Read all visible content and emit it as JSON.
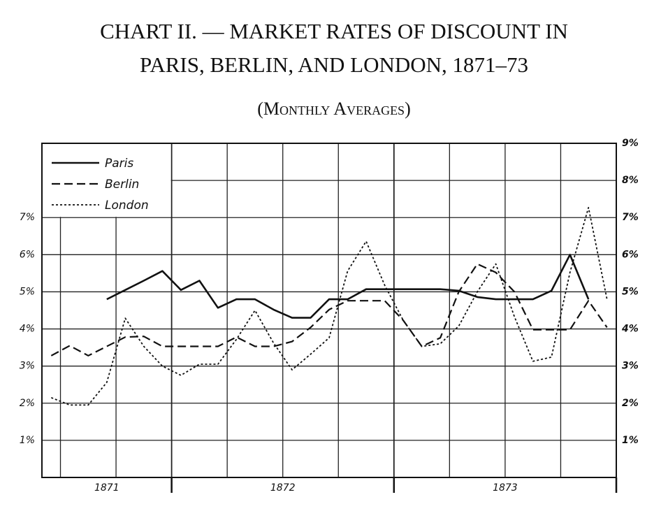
{
  "chart_data": {
    "type": "line",
    "title": [
      "CHART II. — MARKET RATES OF DISCOUNT IN",
      "PARIS, BERLIN, AND LONDON, 1871–73"
    ],
    "subtitle": "(Monthly Averages)",
    "categories": [
      null,
      null,
      null,
      null,
      null,
      null,
      null,
      null,
      null,
      null,
      null,
      null,
      null,
      null,
      null,
      null,
      null,
      null,
      null,
      null,
      null,
      null,
      null,
      null,
      null,
      null,
      null,
      null,
      null,
      null,
      null
    ],
    "year_labels": [
      "1871",
      "1872",
      "1873"
    ],
    "series": [
      {
        "name": "Paris",
        "color": "#111111",
        "dash": "solid",
        "values": [
          null,
          null,
          null,
          4.8,
          5.05,
          5.3,
          5.56,
          5.05,
          5.3,
          4.57,
          4.8,
          4.8,
          4.52,
          4.3,
          4.3,
          4.8,
          4.8,
          5.07,
          5.07,
          5.07,
          5.07,
          5.07,
          5.03,
          4.86,
          4.8,
          4.8,
          4.8,
          5.03,
          6.0,
          4.8,
          null
        ]
      },
      {
        "name": "Berlin",
        "color": "#111111",
        "dash": "dashed",
        "values": [
          3.28,
          3.55,
          3.28,
          3.53,
          3.78,
          3.8,
          3.53,
          3.53,
          3.53,
          3.53,
          3.78,
          3.53,
          3.53,
          3.66,
          4.04,
          4.52,
          4.76,
          4.76,
          4.76,
          4.23,
          3.53,
          3.76,
          5.0,
          5.75,
          5.52,
          5.0,
          3.98,
          3.98,
          3.98,
          4.76,
          4.04
        ]
      },
      {
        "name": "London",
        "color": "#111111",
        "dash": "dotted",
        "values": [
          2.15,
          1.95,
          1.95,
          2.56,
          4.29,
          3.53,
          3.0,
          2.75,
          3.05,
          3.05,
          3.72,
          4.5,
          3.62,
          2.9,
          3.32,
          3.76,
          5.56,
          6.36,
          5.18,
          4.23,
          3.53,
          3.6,
          4.08,
          5.0,
          5.75,
          4.33,
          3.13,
          3.24,
          5.52,
          7.27,
          4.8
        ]
      }
    ],
    "ylim": [
      0,
      9
    ],
    "yticks": [
      {
        "value": 1,
        "label": "1%"
      },
      {
        "value": 2,
        "label": "2%"
      },
      {
        "value": 3,
        "label": "3%"
      },
      {
        "value": 4,
        "label": "4%"
      },
      {
        "value": 5,
        "label": "5%"
      },
      {
        "value": 6,
        "label": "6%"
      },
      {
        "value": 7,
        "label": "7%"
      }
    ],
    "y2lim": [
      0,
      9
    ],
    "y2ticks": [
      {
        "value": 1,
        "label": "1%"
      },
      {
        "value": 2,
        "label": "2%"
      },
      {
        "value": 3,
        "label": "3%"
      },
      {
        "value": 4,
        "label": "4%"
      },
      {
        "value": 5,
        "label": "5%"
      },
      {
        "value": 6,
        "label": "6%"
      },
      {
        "value": 7,
        "label": "7%"
      },
      {
        "value": 8,
        "label": "8%"
      },
      {
        "value": 9,
        "label": "9%"
      }
    ],
    "grid": true,
    "legend": "top-left"
  }
}
